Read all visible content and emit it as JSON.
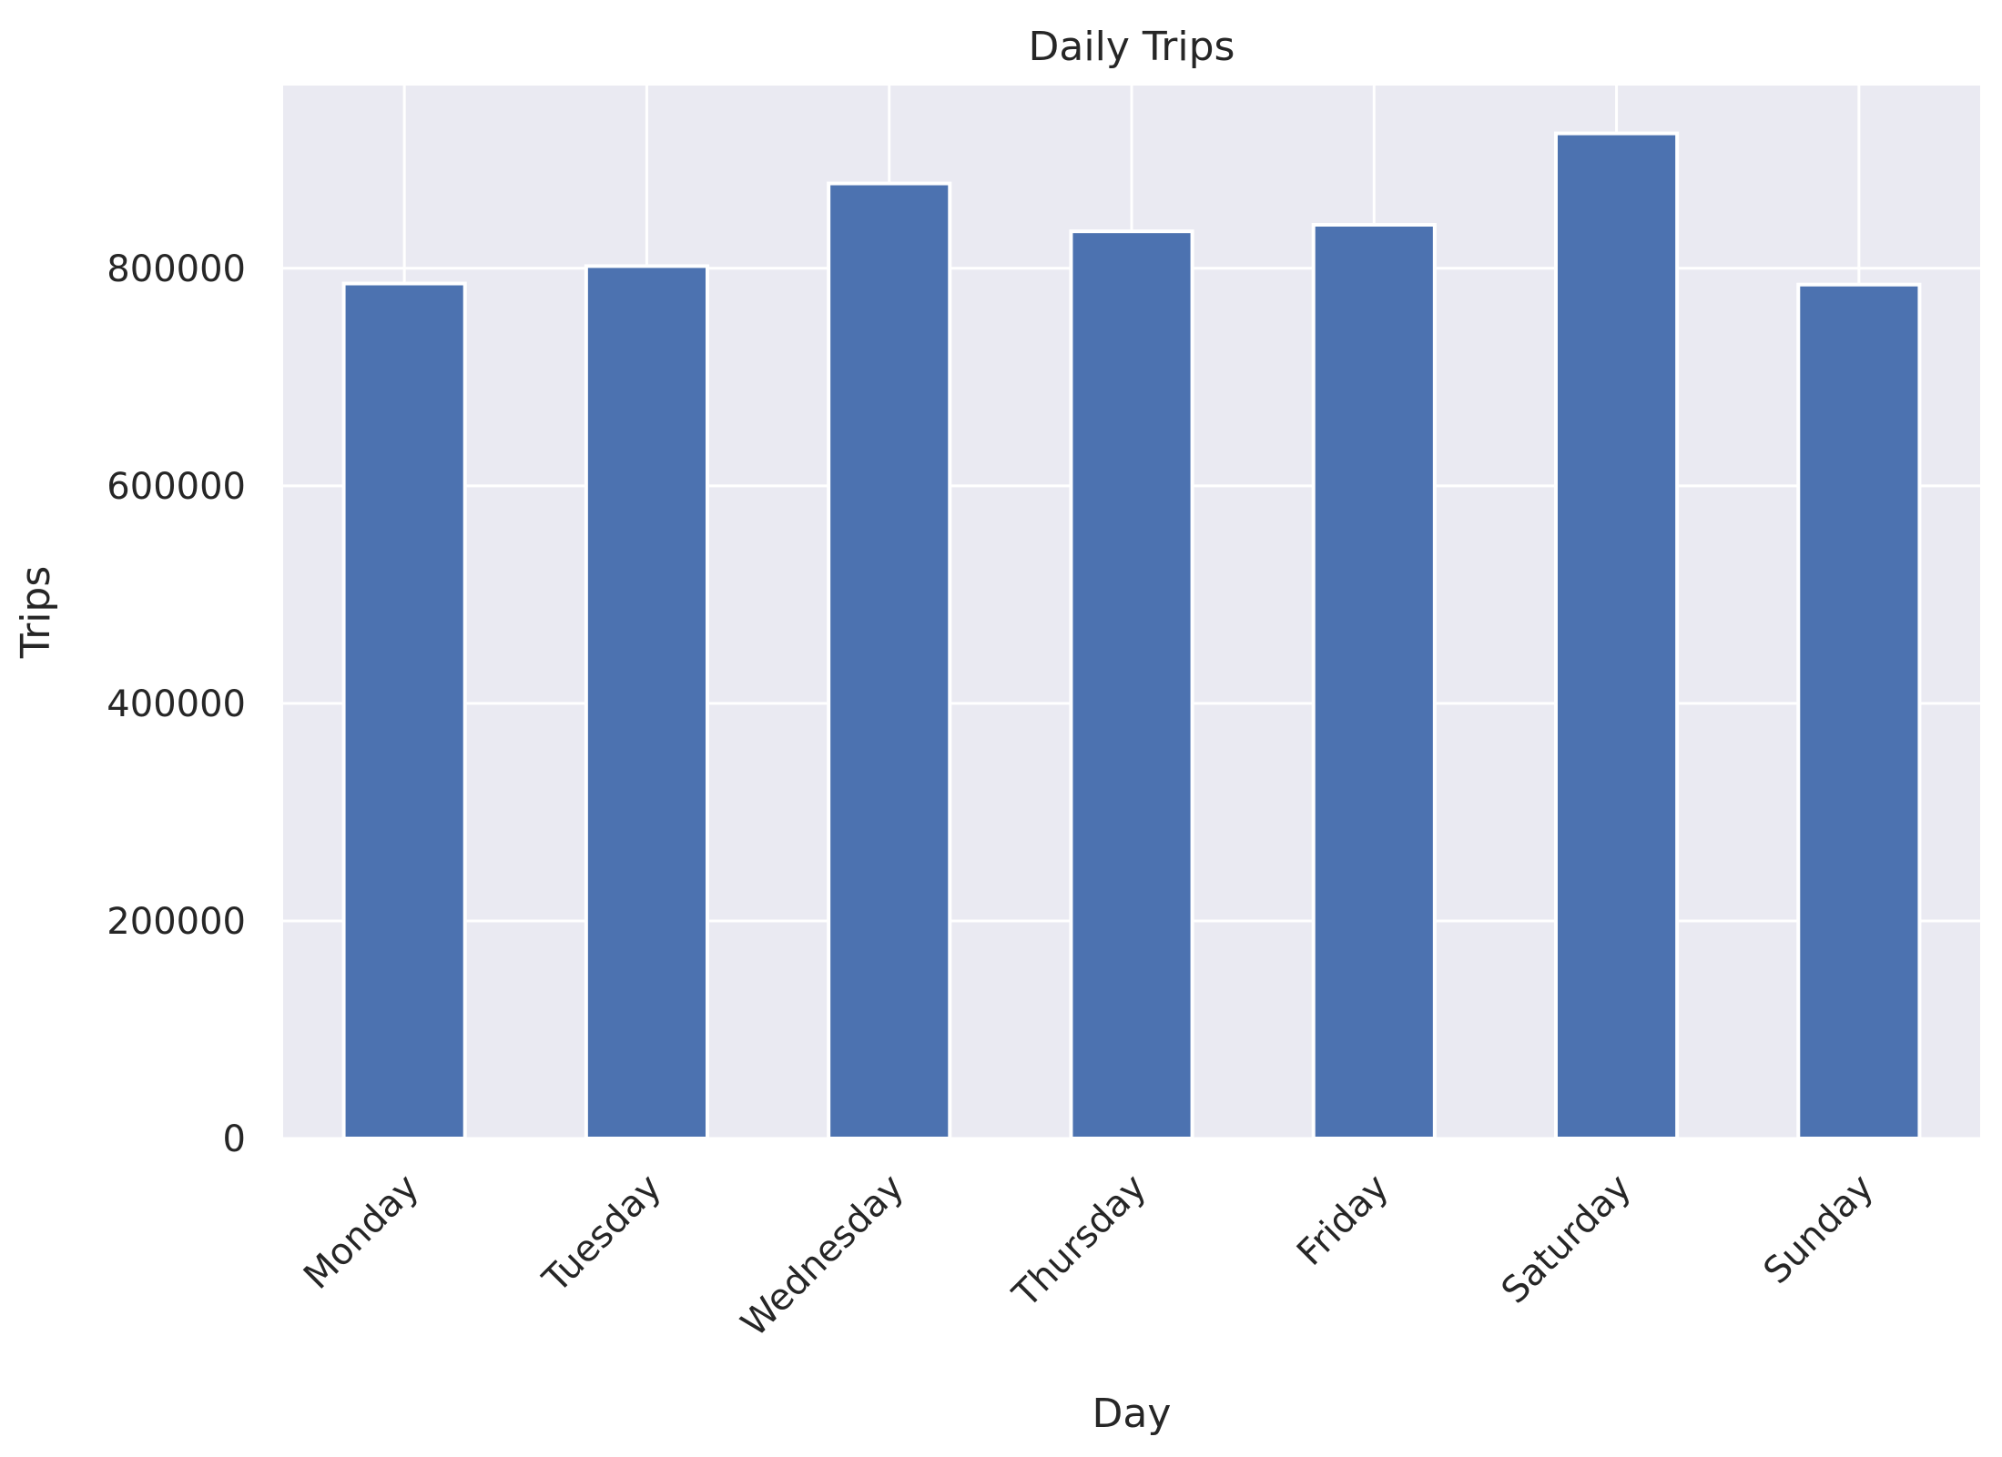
{
  "chart_data": {
    "type": "bar",
    "title": "Daily Trips",
    "xlabel": "Day",
    "ylabel": "Trips",
    "categories": [
      "Monday",
      "Tuesday",
      "Wednesday",
      "Thursday",
      "Friday",
      "Saturday",
      "Sunday"
    ],
    "values": [
      786000,
      802000,
      878000,
      834000,
      840000,
      924000,
      785000
    ],
    "ylim": [
      0,
      968000
    ],
    "yticks": [
      0,
      200000,
      400000,
      600000,
      800000
    ],
    "ytick_labels": [
      "0",
      "200000",
      "400000",
      "600000",
      "800000"
    ],
    "grid": true,
    "legend": "none",
    "bar_color": "#4c72b0",
    "plot_background": "#eaeaf2",
    "grid_color": "#ffffff"
  }
}
